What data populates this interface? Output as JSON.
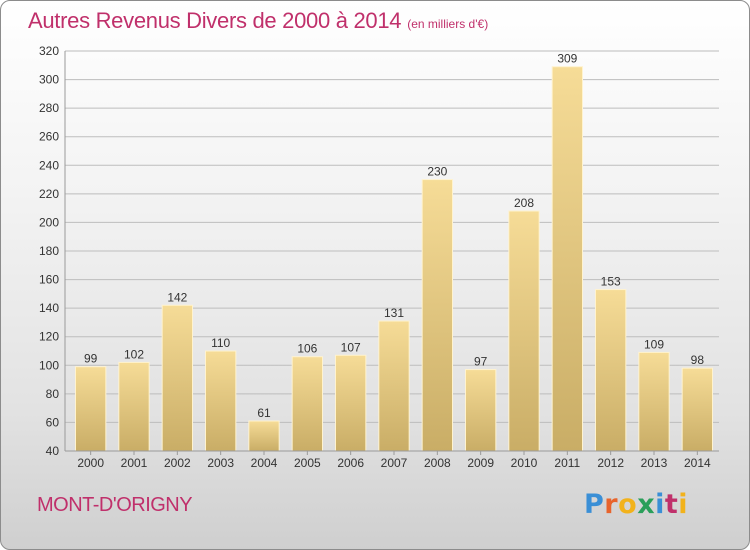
{
  "title": {
    "main": "Autres Revenus Divers de 2000 à 2014",
    "sub": "(en milliers d'€)"
  },
  "commune": "MONT-D'ORIGNY",
  "logo": {
    "letters": [
      "P",
      "r",
      "o",
      "x",
      "i",
      "t",
      "i"
    ],
    "colors": [
      "#3a8fd6",
      "#e8642c",
      "#f2b21b",
      "#2a9f5a",
      "#3a8fd6",
      "#c0306b",
      "#f2b21b"
    ]
  },
  "colors": {
    "title": "#c0306b",
    "bar_light": "#f6dc97",
    "bar_dark": "#c9ad66",
    "gridline": "#bdbdbd"
  },
  "chart_data": {
    "type": "bar",
    "title": "Autres Revenus Divers de 2000 à 2014",
    "subtitle": "(en milliers d'€)",
    "xlabel": "",
    "ylabel": "",
    "ylim": [
      40,
      320
    ],
    "yticks": [
      40,
      60,
      80,
      100,
      120,
      140,
      160,
      180,
      200,
      220,
      240,
      260,
      280,
      300,
      320
    ],
    "grid": true,
    "categories": [
      "2000",
      "2001",
      "2002",
      "2003",
      "2004",
      "2005",
      "2006",
      "2007",
      "2008",
      "2009",
      "2010",
      "2011",
      "2012",
      "2013",
      "2014"
    ],
    "values": [
      99,
      102,
      142,
      110,
      61,
      106,
      107,
      131,
      230,
      97,
      208,
      309,
      153,
      109,
      98
    ]
  }
}
